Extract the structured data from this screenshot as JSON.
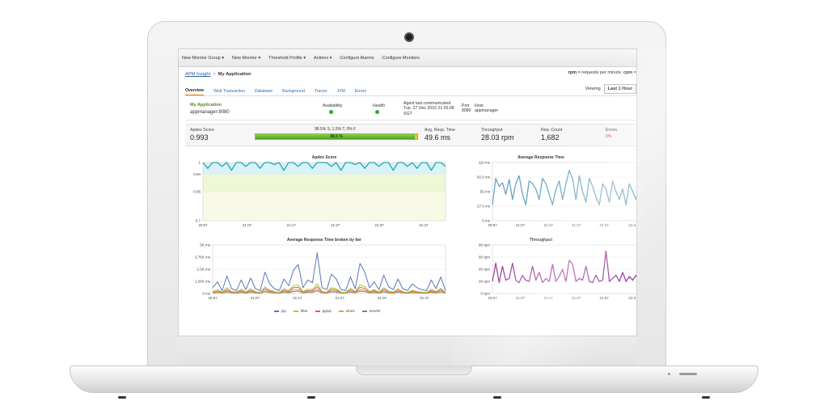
{
  "menu": {
    "items": [
      "New Monitor Group ▾",
      "New Monitor ▾",
      "Threshold Profile ▾",
      "Actions ▾",
      "Configure Alarms",
      "Configure Monitors"
    ]
  },
  "breadcrumb": {
    "root": "APM Insight",
    "separator": ">",
    "current": "My Application"
  },
  "rate_legend": {
    "rpm_key": "rpm",
    "rpm_text": " = requests per minute, ",
    "cpm_key": "cpm",
    "cpm_text": " ="
  },
  "tabs": [
    "Overview",
    "Web Transaction",
    "Database",
    "Background",
    "Traces",
    "JVM",
    "Errors"
  ],
  "active_tab": "Overview",
  "viewing": {
    "label": "Viewing",
    "value": "Last 1 Hour"
  },
  "app_info": {
    "name": "My Application",
    "host": "appmanager:8080",
    "availability_label": "Availability",
    "health_label": "Health",
    "agent_label": "Agent last communicated",
    "agent_value": "Tue, 27 Dec 2016 21:55:08 SGT",
    "port_label": "Port",
    "port_value": "8080",
    "host_label": "Host",
    "host_value": "appmanager",
    "status_colors": {
      "availability": "#2ea82e",
      "health": "#2ea82e"
    }
  },
  "metrics": {
    "apdex_label": "Apdex Score",
    "apdex_value": "0.993",
    "apdex_breakdown": "98.5% S, 1.5% T, 0% F",
    "apdex_bar_text": "98.5 %",
    "apdex_satisfied": 98.5,
    "apdex_tolerating": 1.5,
    "apdex_frustrated": 0,
    "resp_label": "Avg. Resp. Time",
    "resp_value": "49.6 ms",
    "throughput_label": "Throughput",
    "throughput_value": "28.03 rpm",
    "req_label": "Req. Count",
    "req_value": "1,682",
    "errors_label": "Errors",
    "errors_value": "0%"
  },
  "chart_data": [
    {
      "type": "line",
      "title": "Apdex Score",
      "x_ticks": [
        "20:57",
        "21:07",
        "21:17",
        "21:27",
        "21:37",
        "21:47"
      ],
      "y_ticks": [
        "1",
        "0.94",
        "0.85",
        "0.7"
      ],
      "ylim": [
        0.7,
        1.0
      ],
      "bands": [
        {
          "from": 0.94,
          "to": 1.0,
          "color": "#d8f3f5"
        },
        {
          "from": 0.85,
          "to": 0.94,
          "color": "#eef7d6"
        },
        {
          "from": 0.7,
          "to": 0.85,
          "color": "#f8fae6"
        }
      ],
      "series": [
        {
          "color": "#2aa3b5",
          "values": [
            1,
            0.97,
            1,
            1,
            0.98,
            1,
            0.96,
            1,
            1,
            0.98,
            1,
            1,
            0.97,
            1,
            1,
            0.99,
            1,
            0.96,
            1,
            1,
            0.98,
            1,
            1,
            0.97,
            1,
            1,
            1,
            0.98,
            1,
            0.96,
            1,
            1,
            0.99,
            1,
            0.97,
            1,
            1,
            0.98,
            1,
            1,
            0.96,
            1,
            1,
            0.98,
            1,
            0.97,
            1,
            1,
            0.96,
            1,
            1,
            0.98
          ]
        }
      ]
    },
    {
      "type": "line",
      "title": "Average Response Time",
      "x_ticks": [
        "20:57",
        "21:07",
        "21:17",
        "21:27",
        "21:37",
        "21:4"
      ],
      "y_ticks": [
        "110 ms",
        "82.5 ms",
        "55 ms",
        "27.5 ms",
        "0 ms"
      ],
      "ylim": [
        0,
        110
      ],
      "series": [
        {
          "color": "#6ba3c2",
          "values": [
            30,
            80,
            65,
            72,
            50,
            78,
            40,
            70,
            85,
            50,
            30,
            75,
            70,
            60,
            40,
            80,
            70,
            50,
            30,
            60,
            75,
            40,
            70,
            95,
            80,
            40,
            85,
            55,
            35,
            80,
            65,
            45,
            30,
            70,
            60,
            35,
            75,
            55,
            40,
            60,
            30,
            70,
            55,
            40,
            75,
            50,
            35
          ]
        }
      ]
    },
    {
      "type": "line",
      "title": "Average Response Time broken by tier",
      "x_ticks": [
        "20:57",
        "21:07",
        "21:17",
        "21:27",
        "21:37",
        "21:47"
      ],
      "y_ticks": [
        "5K ms",
        "3.75K ms",
        "2.5K ms",
        "1.25K ms",
        "0 ms"
      ],
      "ylim": [
        0,
        5000
      ],
      "series": [
        {
          "name": "jsp",
          "color": "#5878b8",
          "values": [
            600,
            1200,
            300,
            1800,
            500,
            300,
            1400,
            400,
            1600,
            500,
            300,
            2200,
            1000,
            500,
            300,
            1500,
            800,
            2400,
            3000,
            600,
            1400,
            1100,
            4200,
            600,
            400,
            2000,
            1500,
            400,
            300,
            1700,
            500,
            3100,
            2200,
            600,
            1200,
            400,
            1900,
            700,
            400,
            1500,
            500,
            300,
            1000,
            600,
            400,
            300,
            1400,
            500,
            1700,
            300
          ]
        },
        {
          "name": "filter",
          "color": "#a8c83a",
          "values": [
            200,
            400,
            150,
            600,
            200,
            150,
            450,
            150,
            500,
            200,
            100,
            700,
            350,
            200,
            100,
            500,
            300,
            800,
            900,
            200,
            450,
            400,
            1000,
            200,
            150,
            600,
            500,
            150,
            100,
            550,
            200,
            900,
            700,
            200,
            400,
            150,
            600,
            250,
            150,
            500,
            200,
            100,
            350,
            200,
            150,
            100,
            450,
            200,
            550,
            100
          ]
        },
        {
          "name": "pgsql",
          "color": "#e05a5a",
          "values": [
            100,
            250,
            100,
            400,
            150,
            100,
            300,
            100,
            350,
            150,
            80,
            500,
            250,
            150,
            80,
            350,
            200,
            600,
            650,
            150,
            300,
            300,
            700,
            150,
            100,
            450,
            350,
            100,
            80,
            400,
            150,
            650,
            500,
            150,
            300,
            100,
            450,
            200,
            100,
            350,
            150,
            80,
            250,
            150,
            100,
            80,
            300,
            150,
            400,
            80
          ]
        },
        {
          "name": "struts",
          "color": "#e89a3c",
          "values": [
            80,
            150,
            60,
            250,
            100,
            60,
            200,
            60,
            220,
            100,
            50,
            300,
            150,
            100,
            50,
            220,
            120,
            350,
            400,
            100,
            200,
            180,
            450,
            100,
            60,
            280,
            220,
            60,
            50,
            250,
            100,
            400,
            300,
            100,
            180,
            60,
            280,
            120,
            60,
            220,
            100,
            50,
            150,
            100,
            60,
            50,
            200,
            100,
            250,
            50
          ]
        },
        {
          "name": "servlet",
          "color": "#6a8a8a",
          "values": [
            50,
            100,
            40,
            150,
            60,
            40,
            120,
            40,
            130,
            60,
            30,
            180,
            90,
            60,
            30,
            130,
            70,
            200,
            250,
            60,
            120,
            110,
            280,
            60,
            40,
            170,
            130,
            40,
            30,
            150,
            60,
            250,
            180,
            60,
            110,
            40,
            170,
            70,
            40,
            130,
            60,
            30,
            90,
            60,
            40,
            30,
            120,
            60,
            150,
            30
          ]
        }
      ]
    },
    {
      "type": "line",
      "title": "Throughput",
      "x_ticks": [
        "20:57",
        "21:07",
        "21:17",
        "21:27",
        "21:37",
        "21:4"
      ],
      "y_ticks": [
        "80 rpm",
        "60 rpm",
        "40 rpm",
        "20 rpm",
        "0 rpm"
      ],
      "ylim": [
        0,
        80
      ],
      "series": [
        {
          "color": "#9a3b9a",
          "values": [
            20,
            50,
            18,
            45,
            22,
            25,
            50,
            22,
            18,
            30,
            22,
            20,
            45,
            22,
            35,
            18,
            25,
            20,
            48,
            20,
            28,
            40,
            20,
            55,
            48,
            20,
            25,
            22,
            45,
            20,
            18,
            30,
            20,
            22,
            70,
            20,
            25,
            30,
            20,
            35,
            20,
            28,
            22,
            30,
            18,
            22,
            28
          ]
        }
      ]
    }
  ]
}
